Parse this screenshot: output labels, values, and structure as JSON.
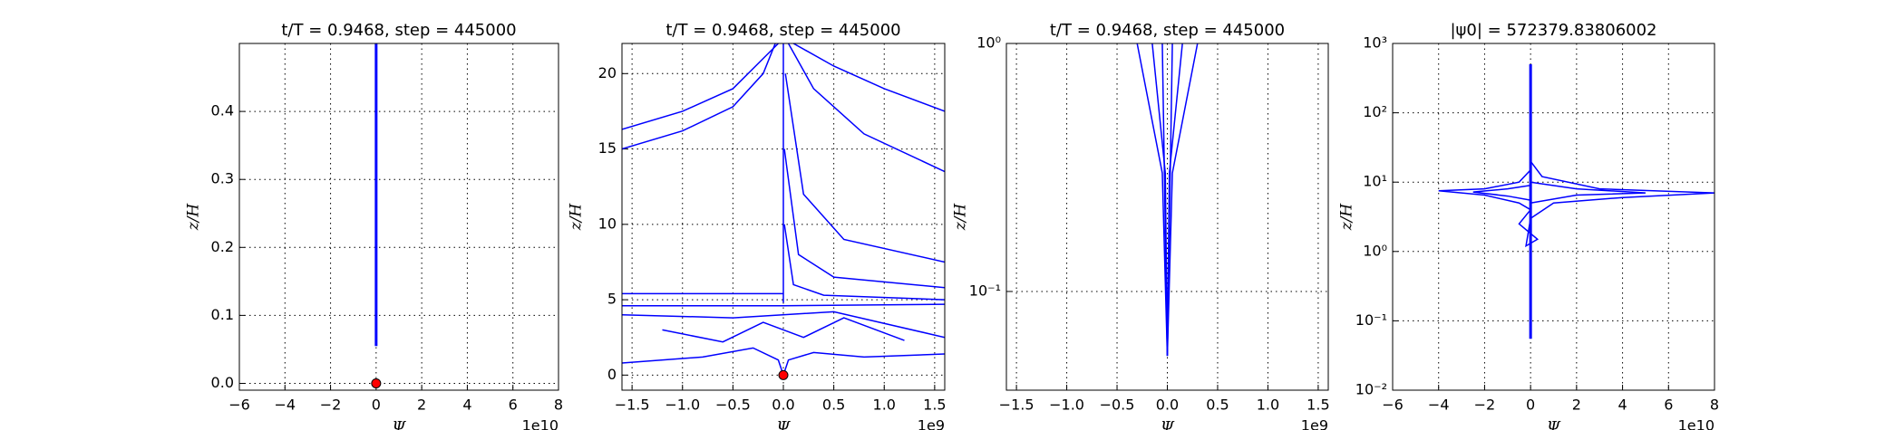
{
  "chart_data": [
    {
      "type": "line",
      "title": "t/T = 0.9468, step = 445000",
      "xlabel": "Ψ",
      "ylabel": "z/H",
      "x_offset_label": "1e10",
      "xlim": [
        -60000000000,
        80000000000
      ],
      "ylim": [
        -0.01,
        0.5
      ],
      "log_y": false,
      "grid": true,
      "xticks": [
        {
          "value": -60000000000,
          "label": "−6"
        },
        {
          "value": -40000000000,
          "label": "−4"
        },
        {
          "value": -20000000000,
          "label": "−2"
        },
        {
          "value": 0,
          "label": "0"
        },
        {
          "value": 20000000000,
          "label": "2"
        },
        {
          "value": 40000000000,
          "label": "4"
        },
        {
          "value": 60000000000,
          "label": "6"
        },
        {
          "value": 80000000000,
          "label": "8"
        }
      ],
      "yticks": [
        {
          "value": 0,
          "label": "0.0"
        },
        0.1,
        0.2,
        0.3,
        0.4
      ],
      "series": [
        {
          "color": "#0000ff",
          "x": [
            0,
            0
          ],
          "values": [
            0.055,
            0.5
          ]
        },
        {
          "color": "#ff0000",
          "marker": "o",
          "x": [
            0
          ],
          "values": [
            0
          ]
        }
      ]
    },
    {
      "type": "line",
      "title": "t/T = 0.9468, step = 445000",
      "xlabel": "Ψ",
      "ylabel": "z/H",
      "x_offset_label": "1e9",
      "xlim": [
        -1600000000,
        1600000000
      ],
      "ylim": [
        -1,
        22
      ],
      "log_y": false,
      "grid": true,
      "xticks": [
        {
          "value": -1500000000,
          "label": "−1.5"
        },
        {
          "value": -1000000000,
          "label": "−1.0"
        },
        {
          "value": -500000000,
          "label": "−0.5"
        },
        {
          "value": 0,
          "label": "0.0"
        },
        {
          "value": 500000000,
          "label": "0.5"
        },
        {
          "value": 1000000000,
          "label": "1.0"
        },
        {
          "value": 1500000000,
          "label": "1.5"
        }
      ],
      "yticks": [
        0,
        5,
        10,
        15,
        20
      ],
      "series": [
        {
          "color": "#0000ff",
          "x": [
            -1600000000,
            -1000000000,
            -500000000,
            -200000000,
            -50000000
          ],
          "values": [
            16.3,
            17.5,
            19,
            21,
            22
          ]
        },
        {
          "color": "#0000ff",
          "x": [
            -1600000000,
            -1000000000,
            -500000000,
            -200000000,
            -80000000
          ],
          "values": [
            15,
            16.2,
            17.8,
            20,
            22
          ]
        },
        {
          "color": "#0000ff",
          "x": [
            0,
            0
          ],
          "values": [
            4.8,
            22
          ]
        },
        {
          "color": "#0000ff",
          "x": [
            50000000,
            300000000,
            800000000,
            1600000000
          ],
          "values": [
            22,
            19,
            16,
            13.5
          ]
        },
        {
          "color": "#0000ff",
          "x": [
            100000000,
            500000000,
            1000000000,
            1600000000
          ],
          "values": [
            22,
            20.5,
            19,
            17.5
          ]
        },
        {
          "color": "#0000ff",
          "x": [
            20000000,
            200000000,
            600000000,
            1600000000
          ],
          "values": [
            20,
            12,
            9,
            7.5
          ]
        },
        {
          "color": "#0000ff",
          "x": [
            10000000,
            150000000,
            500000000,
            1600000000
          ],
          "values": [
            15,
            8,
            6.5,
            5.8
          ]
        },
        {
          "color": "#0000ff",
          "x": [
            10000000,
            100000000,
            400000000,
            1600000000
          ],
          "values": [
            10,
            6,
            5.3,
            5
          ]
        },
        {
          "color": "#0000ff",
          "x": [
            -1600000000,
            0
          ],
          "values": [
            5.4,
            5.4
          ]
        },
        {
          "color": "#0000ff",
          "x": [
            -1600000000,
            0,
            1600000000
          ],
          "values": [
            4.6,
            4.6,
            4.7
          ]
        },
        {
          "color": "#0000ff",
          "x": [
            -1600000000,
            -800000000,
            -300000000,
            -50000000,
            0
          ],
          "values": [
            0.8,
            1.2,
            1.8,
            1,
            0
          ]
        },
        {
          "color": "#0000ff",
          "x": [
            0,
            50000000,
            300000000,
            800000000,
            1600000000
          ],
          "values": [
            0,
            1,
            1.5,
            1.2,
            1.4
          ]
        },
        {
          "color": "#0000ff",
          "x": [
            -1200000000,
            -600000000,
            -200000000,
            200000000,
            600000000,
            1200000000
          ],
          "values": [
            3,
            2.2,
            3.5,
            2.5,
            3.8,
            2.3
          ]
        },
        {
          "color": "#0000ff",
          "x": [
            -1600000000,
            -500000000,
            500000000,
            1600000000
          ],
          "values": [
            4,
            3.8,
            4.2,
            2.5
          ]
        },
        {
          "color": "#ff0000",
          "marker": "o",
          "x": [
            0
          ],
          "values": [
            0
          ]
        }
      ]
    },
    {
      "type": "line",
      "title": "t/T = 0.9468, step = 445000",
      "xlabel": "Ψ",
      "ylabel": "z/H",
      "x_offset_label": "1e9",
      "xlim": [
        -1600000000,
        1600000000
      ],
      "ylim": [
        0.04,
        1
      ],
      "log_y": true,
      "grid": true,
      "xticks": [
        {
          "value": -1500000000,
          "label": "−1.5"
        },
        {
          "value": -1000000000,
          "label": "−1.0"
        },
        {
          "value": -500000000,
          "label": "−0.5"
        },
        {
          "value": 0,
          "label": "0.0"
        },
        {
          "value": 500000000,
          "label": "0.5"
        },
        {
          "value": 1000000000,
          "label": "1.0"
        },
        {
          "value": 1500000000,
          "label": "1.5"
        }
      ],
      "yticks": [
        {
          "value": 0.1,
          "label": "10⁻¹"
        },
        {
          "value": 1,
          "label": "10⁰"
        }
      ],
      "series": [
        {
          "color": "#0000ff",
          "x": [
            -300000000,
            -50000000,
            0,
            50000000,
            300000000
          ],
          "values": [
            1,
            0.3,
            0.055,
            0.3,
            1
          ]
        },
        {
          "color": "#0000ff",
          "x": [
            -150000000,
            -20000000,
            0,
            20000000,
            150000000
          ],
          "values": [
            1,
            0.3,
            0.055,
            0.3,
            1
          ]
        },
        {
          "color": "#0000ff",
          "x": [
            -50000000,
            0,
            50000000
          ],
          "values": [
            1,
            0.055,
            1
          ]
        }
      ]
    },
    {
      "type": "line",
      "title": "|ψ0| = 572379.83806002",
      "xlabel": "Ψ",
      "ylabel": "z/H",
      "x_offset_label": "1e10",
      "xlim": [
        -60000000000,
        80000000000
      ],
      "ylim": [
        0.01,
        1000
      ],
      "log_y": true,
      "grid": true,
      "xticks": [
        {
          "value": -60000000000,
          "label": "−6"
        },
        {
          "value": -40000000000,
          "label": "−4"
        },
        {
          "value": -20000000000,
          "label": "−2"
        },
        {
          "value": 0,
          "label": "0"
        },
        {
          "value": 20000000000,
          "label": "2"
        },
        {
          "value": 40000000000,
          "label": "4"
        },
        {
          "value": 60000000000,
          "label": "6"
        },
        {
          "value": 80000000000,
          "label": "8"
        }
      ],
      "yticks": [
        {
          "value": 0.01,
          "label": "10⁻²"
        },
        {
          "value": 0.1,
          "label": "10⁻¹"
        },
        {
          "value": 1,
          "label": "10⁰"
        },
        {
          "value": 10,
          "label": "10¹"
        },
        {
          "value": 100,
          "label": "10²"
        },
        {
          "value": 1000,
          "label": "10³"
        }
      ],
      "series": [
        {
          "color": "#0000ff",
          "x": [
            0,
            0
          ],
          "values": [
            0.055,
            500
          ]
        },
        {
          "color": "#0000ff",
          "x": [
            0,
            5000000000,
            30000000000,
            80000000000,
            40000000000,
            10000000000,
            0
          ],
          "values": [
            20,
            12,
            8,
            7,
            6,
            5,
            3
          ]
        },
        {
          "color": "#0000ff",
          "x": [
            0,
            -5000000000,
            -20000000000,
            -40000000000,
            -20000000000,
            -5000000000,
            0
          ],
          "values": [
            15,
            10,
            8,
            7.5,
            6.5,
            5,
            4
          ]
        },
        {
          "color": "#0000ff",
          "x": [
            0,
            20000000000,
            50000000000,
            20000000000,
            0
          ],
          "values": [
            10,
            8,
            7,
            6.5,
            5
          ]
        },
        {
          "color": "#0000ff",
          "x": [
            0,
            -10000000000,
            -25000000000,
            -10000000000,
            0
          ],
          "values": [
            9,
            8,
            7.2,
            6.3,
            5.5
          ]
        },
        {
          "color": "#0000ff",
          "x": [
            0,
            -5000000000,
            3000000000,
            -2000000000,
            0
          ],
          "values": [
            4,
            2.5,
            1.5,
            1.2,
            3
          ]
        }
      ]
    }
  ]
}
